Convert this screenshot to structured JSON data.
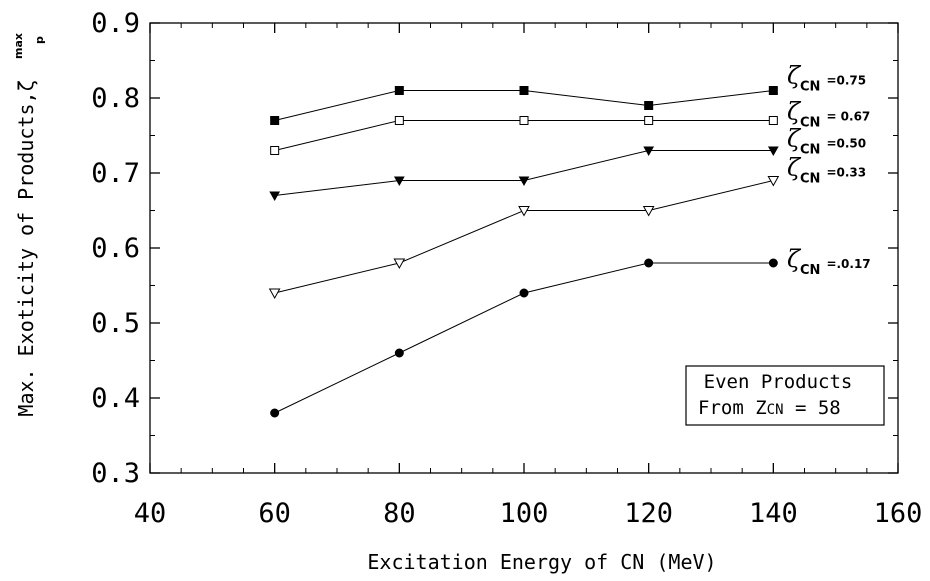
{
  "chart_data": {
    "type": "line",
    "xlabel": "Excitation Energy of CN (MeV)",
    "ylabel": "Max. Exoticity of Products,ζ",
    "ylabel_superscript": "max",
    "ylabel_subscript": "p",
    "xlim": [
      40,
      160
    ],
    "ylim": [
      0.3,
      0.9
    ],
    "x_ticks": [
      "40",
      "60",
      "80",
      "100",
      "120",
      "140",
      "160"
    ],
    "y_ticks": [
      "0.3",
      "0.4",
      "0.5",
      "0.6",
      "0.7",
      "0.8",
      "0.9"
    ],
    "grid": false,
    "x": [
      60,
      80,
      100,
      120,
      140
    ],
    "series": [
      {
        "name": "ζCN =0.75",
        "label_symbol": "ζ",
        "label_sub": "CN",
        "label_value": "=0.75",
        "marker": "filled-square",
        "values": [
          0.77,
          0.81,
          0.81,
          0.79,
          0.81
        ]
      },
      {
        "name": "ζCN = 0.67",
        "label_symbol": "ζ",
        "label_sub": "CN",
        "label_value": "= 0.67",
        "marker": "open-square",
        "values": [
          0.73,
          0.77,
          0.77,
          0.77,
          0.77
        ]
      },
      {
        "name": "ζCN =0.50",
        "label_symbol": "ζ",
        "label_sub": "CN",
        "label_value": "=0.50",
        "marker": "filled-triangle-down",
        "values": [
          0.67,
          0.69,
          0.69,
          0.73,
          0.73
        ]
      },
      {
        "name": "ζCN =0.33",
        "label_symbol": "ζ",
        "label_sub": "CN",
        "label_value": "=0.33",
        "marker": "open-triangle-down",
        "values": [
          0.54,
          0.58,
          0.65,
          0.65,
          0.69
        ]
      },
      {
        "name": "ζCN =.0.17",
        "label_symbol": "ζ",
        "label_sub": "CN",
        "label_value": "=.0.17",
        "marker": "filled-circle",
        "values": [
          0.38,
          0.46,
          0.54,
          0.58,
          0.58
        ]
      }
    ],
    "annotation": {
      "line1": "Even Products",
      "line2_prefix": "From Z",
      "line2_sub": "CN",
      "line2_suffix": " = 58",
      "placement": "lower-right"
    }
  }
}
